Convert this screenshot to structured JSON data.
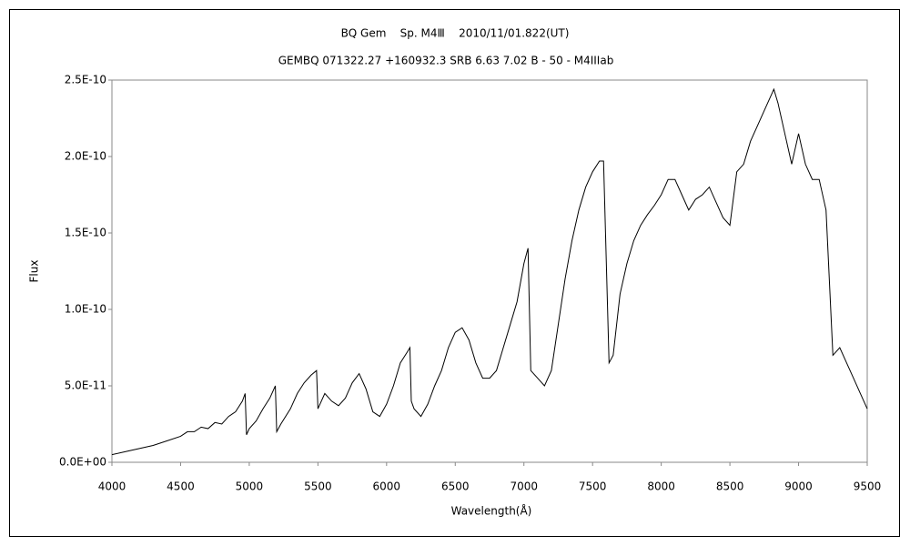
{
  "chart_data": {
    "type": "line",
    "title": "BQ Gem    Sp. M4Ⅲ    2010/11/01.822(UT)",
    "subtitle": "GEMBQ 071322.27 +160932.3 SRB 6.63 7.02 B - 50 - M4IIIab",
    "x_label": "Wavelength(Å)",
    "y_label": "Flux",
    "xlim": [
      4000,
      9500
    ],
    "xticks": [
      4000,
      4500,
      5000,
      5500,
      6000,
      6500,
      7000,
      7500,
      8000,
      8500,
      9000,
      9500
    ],
    "ylim": [
      0,
      2.5e-10
    ],
    "yticks": [
      {
        "value": 0,
        "label": "0.0E+00"
      },
      {
        "value": 5e-11,
        "label": "5.0E-11"
      },
      {
        "value": 1e-10,
        "label": "1.0E-10"
      },
      {
        "value": 1.5e-10,
        "label": "1.5E-10"
      },
      {
        "value": 2e-10,
        "label": "2.0E-10"
      },
      {
        "value": 2.5e-10,
        "label": "2.5E-10"
      }
    ],
    "grid": false,
    "x": [
      4000,
      4100,
      4200,
      4300,
      4400,
      4500,
      4550,
      4600,
      4650,
      4700,
      4750,
      4800,
      4850,
      4900,
      4950,
      4970,
      4980,
      5000,
      5050,
      5100,
      5150,
      5190,
      5200,
      5230,
      5300,
      5350,
      5400,
      5450,
      5490,
      5500,
      5550,
      5600,
      5650,
      5700,
      5750,
      5800,
      5850,
      5900,
      5950,
      6000,
      6050,
      6100,
      6150,
      6170,
      6180,
      6200,
      6250,
      6300,
      6350,
      6400,
      6450,
      6500,
      6550,
      6600,
      6650,
      6700,
      6750,
      6800,
      6850,
      6900,
      6950,
      7000,
      7030,
      7050,
      7100,
      7150,
      7200,
      7250,
      7300,
      7350,
      7400,
      7450,
      7500,
      7550,
      7580,
      7620,
      7650,
      7700,
      7750,
      7800,
      7850,
      7900,
      7950,
      8000,
      8050,
      8100,
      8150,
      8200,
      8250,
      8300,
      8350,
      8400,
      8450,
      8500,
      8550,
      8600,
      8650,
      8700,
      8750,
      8800,
      8820,
      8850,
      8900,
      8950,
      9000,
      9050,
      9100,
      9150,
      9200,
      9250,
      9300,
      9350,
      9400,
      9450,
      9500
    ],
    "series": [
      {
        "name": "Flux",
        "color": "#000000",
        "values": [
          5e-12,
          7e-12,
          9e-12,
          1.1e-11,
          1.4e-11,
          1.7e-11,
          2e-11,
          2e-11,
          2.3e-11,
          2.2e-11,
          2.6e-11,
          2.5e-11,
          3e-11,
          3.3e-11,
          4e-11,
          4.5e-11,
          1.8e-11,
          2.2e-11,
          2.7e-11,
          3.5e-11,
          4.2e-11,
          5e-11,
          2e-11,
          2.5e-11,
          3.5e-11,
          4.5e-11,
          5.2e-11,
          5.7e-11,
          6e-11,
          3.5e-11,
          4.5e-11,
          4e-11,
          3.7e-11,
          4.2e-11,
          5.2e-11,
          5.8e-11,
          4.8e-11,
          3.3e-11,
          3e-11,
          3.8e-11,
          5e-11,
          6.5e-11,
          7.2e-11,
          7.5e-11,
          4e-11,
          3.5e-11,
          3e-11,
          3.8e-11,
          5e-11,
          6e-11,
          7.5e-11,
          8.5e-11,
          8.8e-11,
          8e-11,
          6.5e-11,
          5.5e-11,
          5.5e-11,
          6e-11,
          7.5e-11,
          9e-11,
          1.05e-10,
          1.3e-10,
          1.4e-10,
          6e-11,
          5.5e-11,
          5e-11,
          6e-11,
          9e-11,
          1.2e-10,
          1.45e-10,
          1.65e-10,
          1.8e-10,
          1.9e-10,
          1.97e-10,
          1.97e-10,
          6.5e-11,
          7e-11,
          1.1e-10,
          1.3e-10,
          1.45e-10,
          1.55e-10,
          1.62e-10,
          1.68e-10,
          1.75e-10,
          1.85e-10,
          1.85e-10,
          1.75e-10,
          1.65e-10,
          1.72e-10,
          1.75e-10,
          1.8e-10,
          1.7e-10,
          1.6e-10,
          1.55e-10,
          1.9e-10,
          1.95e-10,
          2.1e-10,
          2.2e-10,
          2.3e-10,
          2.4e-10,
          2.44e-10,
          2.35e-10,
          2.15e-10,
          1.95e-10,
          2.15e-10,
          1.95e-10,
          1.85e-10,
          1.85e-10,
          1.65e-10,
          7e-11,
          7.5e-11,
          6.5e-11,
          5.5e-11,
          4.5e-11,
          3.5e-11
        ]
      }
    ]
  }
}
